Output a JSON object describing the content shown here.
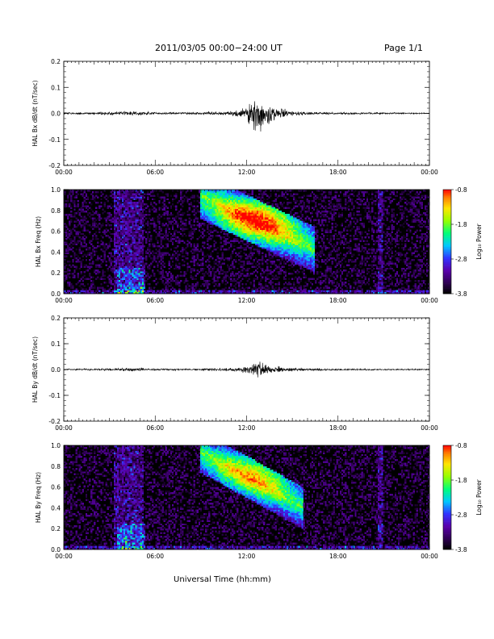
{
  "header": {
    "title": "2011/03/05  00:00−24:00 UT",
    "page": "Page 1/1"
  },
  "colors": {
    "spectrogram_background": "#000000",
    "colorbar": [
      "#000000",
      "#3a0066",
      "#5a00aa",
      "#2a2aff",
      "#00ccff",
      "#00ff66",
      "#aaff00",
      "#ffee00",
      "#ff8800",
      "#ff0000"
    ]
  },
  "chart_data": [
    {
      "type": "line",
      "id": "bx-timeseries",
      "ylabel": "HAL Bx dB/dt (nT/sec)",
      "ylim": [
        -0.2,
        0.2
      ],
      "yticks": [
        "0.2",
        "0.1",
        "0.0",
        "-0.1",
        "-0.2"
      ],
      "xlim": [
        0,
        24
      ],
      "xticks": [
        "00:00",
        "06:00",
        "12:00",
        "18:00",
        "00:00"
      ],
      "grid": false,
      "envelope_hours": [
        0,
        3.5,
        4.5,
        6,
        9,
        11,
        12,
        12.4,
        12.7,
        13,
        13.5,
        14,
        15,
        16,
        18,
        21,
        24
      ],
      "envelope_amplitude": [
        0.003,
        0.005,
        0.008,
        0.004,
        0.004,
        0.008,
        0.02,
        0.04,
        0.07,
        0.045,
        0.03,
        0.02,
        0.008,
        0.005,
        0.004,
        0.003,
        0.002
      ]
    },
    {
      "type": "heatmap",
      "id": "bx-spectrogram",
      "ylabel": "HAL Bx Freq (Hz)",
      "ylim": [
        0,
        1.0
      ],
      "yticks": [
        "1.0",
        "0.8",
        "0.6",
        "0.4",
        "0.2",
        "0.0"
      ],
      "xlim": [
        0,
        24
      ],
      "xticks": [
        "00:00",
        "06:00",
        "12:00",
        "18:00",
        "00:00"
      ],
      "colorbar": {
        "label": "Log₁₀ Power",
        "range": [
          -3.8,
          -0.8
        ],
        "ticks": [
          "-0.8",
          "-1.8",
          "-2.8",
          "-3.8"
        ]
      },
      "band": {
        "start_hour": 9.0,
        "end_hour": 16.5,
        "freq_start": 0.96,
        "freq_end": 0.44,
        "width": 0.22
      },
      "peak": {
        "hour": 12.8,
        "freq": 0.72,
        "log_power": -0.8
      }
    },
    {
      "type": "line",
      "id": "by-timeseries",
      "ylabel": "HAL By dB/dt (nT/sec)",
      "ylim": [
        -0.2,
        0.2
      ],
      "yticks": [
        "0.2",
        "0.1",
        "0.0",
        "-0.1",
        "-0.2"
      ],
      "xlim": [
        0,
        24
      ],
      "xticks": [
        "00:00",
        "06:00",
        "12:00",
        "18:00",
        "00:00"
      ],
      "grid": false,
      "envelope_hours": [
        0,
        3.5,
        4.5,
        6,
        9,
        11,
        12,
        12.4,
        12.7,
        13,
        13.5,
        14,
        15,
        16,
        18,
        21,
        24
      ],
      "envelope_amplitude": [
        0.002,
        0.004,
        0.006,
        0.003,
        0.003,
        0.006,
        0.012,
        0.02,
        0.035,
        0.025,
        0.018,
        0.012,
        0.006,
        0.004,
        0.003,
        0.002,
        0.002
      ]
    },
    {
      "type": "heatmap",
      "id": "by-spectrogram",
      "ylabel": "HAL By Freq (Hz)",
      "ylim": [
        0,
        1.0
      ],
      "yticks": [
        "1.0",
        "0.8",
        "0.6",
        "0.4",
        "0.2",
        "0.0"
      ],
      "xlim": [
        0,
        24
      ],
      "xticks": [
        "00:00",
        "06:00",
        "12:00",
        "18:00",
        "00:00"
      ],
      "xlabel": "Universal Time (hh:mm)",
      "colorbar": {
        "label": "Log₁₀ Power",
        "range": [
          -3.8,
          -0.8
        ],
        "ticks": [
          "-0.8",
          "-1.8",
          "-2.8",
          "-3.8"
        ]
      },
      "band": {
        "start_hour": 9.0,
        "end_hour": 15.7,
        "freq_start": 0.96,
        "freq_end": 0.42,
        "width": 0.2
      },
      "peak": {
        "hour": 12.8,
        "freq": 0.74,
        "log_power": -1.2
      }
    }
  ]
}
